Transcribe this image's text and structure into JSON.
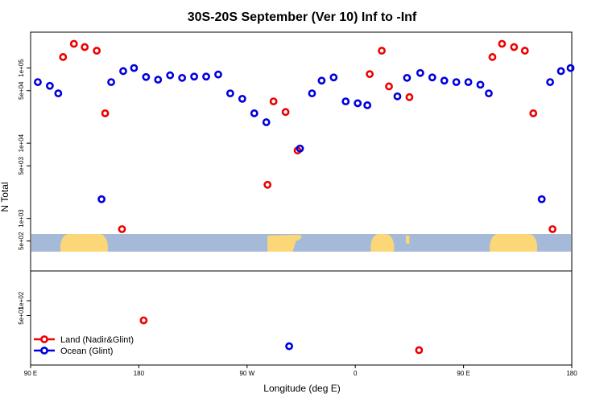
{
  "chart_data": {
    "type": "scatter",
    "title": "30S-20S September (Ver 10)   Inf to -Inf",
    "xlabel": "Longitude (deg E)",
    "ylabel": "N Total",
    "x_ticks": [
      {
        "value": 90,
        "label": "90 E"
      },
      {
        "value": 180,
        "label": "180"
      },
      {
        "value": 270,
        "label": "90 W"
      },
      {
        "value": 360,
        "label": "0"
      },
      {
        "value": 450,
        "label": "90 E"
      },
      {
        "value": 540,
        "label": "180"
      }
    ],
    "xlim": [
      90,
      540
    ],
    "upper_panel": {
      "scale": "log",
      "ylim": [
        200,
        300000
      ],
      "y_ticks": [
        {
          "value": 500,
          "label": "5e+02"
        },
        {
          "value": 1000,
          "label": "1e+03"
        },
        {
          "value": 5000,
          "label": "5e+03"
        },
        {
          "value": 10000,
          "label": "1e+04"
        },
        {
          "value": 50000,
          "label": "5e+04"
        },
        {
          "value": 100000,
          "label": "1e+05"
        }
      ]
    },
    "lower_panel": {
      "scale": "log",
      "ylim": [
        5,
        400
      ],
      "y_ticks": [
        {
          "value": 50,
          "label": "5e+01"
        },
        {
          "value": 100,
          "label": "1e+02"
        }
      ]
    },
    "colors": {
      "land": "#ee0000",
      "ocean": "#0000dd",
      "map_ocean": "#a5b9d9",
      "map_land": "#fcd777"
    },
    "series": [
      {
        "name": "Land (Nadir&Glint)",
        "color": "#ee0000",
        "points": [
          {
            "x": 117,
            "y": 140000,
            "panel": "upper"
          },
          {
            "x": 126,
            "y": 210000,
            "panel": "upper"
          },
          {
            "x": 135,
            "y": 190000,
            "panel": "upper"
          },
          {
            "x": 145,
            "y": 170000,
            "panel": "upper"
          },
          {
            "x": 152,
            "y": 25000,
            "panel": "upper"
          },
          {
            "x": 166,
            "y": 720,
            "panel": "upper"
          },
          {
            "x": 184,
            "y": 40,
            "panel": "lower"
          },
          {
            "x": 287,
            "y": 2800,
            "panel": "upper"
          },
          {
            "x": 292,
            "y": 36000,
            "panel": "upper"
          },
          {
            "x": 302,
            "y": 26000,
            "panel": "upper"
          },
          {
            "x": 312,
            "y": 8000,
            "panel": "upper"
          },
          {
            "x": 372,
            "y": 83000,
            "panel": "upper"
          },
          {
            "x": 382,
            "y": 170000,
            "panel": "upper"
          },
          {
            "x": 388,
            "y": 57000,
            "panel": "upper"
          },
          {
            "x": 405,
            "y": 41000,
            "panel": "upper"
          },
          {
            "x": 413,
            "y": 10,
            "panel": "lower"
          },
          {
            "x": 474,
            "y": 140000,
            "panel": "upper"
          },
          {
            "x": 482,
            "y": 210000,
            "panel": "upper"
          },
          {
            "x": 492,
            "y": 190000,
            "panel": "upper"
          },
          {
            "x": 501,
            "y": 170000,
            "panel": "upper"
          },
          {
            "x": 508,
            "y": 25000,
            "panel": "upper"
          },
          {
            "x": 524,
            "y": 720,
            "panel": "upper"
          }
        ]
      },
      {
        "name": "Ocean (Glint)",
        "color": "#0000dd",
        "points": [
          {
            "x": 96,
            "y": 65000,
            "panel": "upper"
          },
          {
            "x": 106,
            "y": 58000,
            "panel": "upper"
          },
          {
            "x": 113,
            "y": 46000,
            "panel": "upper"
          },
          {
            "x": 149,
            "y": 1800,
            "panel": "upper"
          },
          {
            "x": 157,
            "y": 65000,
            "panel": "upper"
          },
          {
            "x": 167,
            "y": 91000,
            "panel": "upper"
          },
          {
            "x": 176,
            "y": 100000,
            "panel": "upper"
          },
          {
            "x": 186,
            "y": 76000,
            "panel": "upper"
          },
          {
            "x": 196,
            "y": 70000,
            "panel": "upper"
          },
          {
            "x": 206,
            "y": 80000,
            "panel": "upper"
          },
          {
            "x": 216,
            "y": 74000,
            "panel": "upper"
          },
          {
            "x": 226,
            "y": 77000,
            "panel": "upper"
          },
          {
            "x": 236,
            "y": 77000,
            "panel": "upper"
          },
          {
            "x": 246,
            "y": 82000,
            "panel": "upper"
          },
          {
            "x": 256,
            "y": 46000,
            "panel": "upper"
          },
          {
            "x": 266,
            "y": 39000,
            "panel": "upper"
          },
          {
            "x": 276,
            "y": 25000,
            "panel": "upper"
          },
          {
            "x": 286,
            "y": 19000,
            "panel": "upper"
          },
          {
            "x": 314,
            "y": 8500,
            "panel": "upper"
          },
          {
            "x": 324,
            "y": 46000,
            "panel": "upper"
          },
          {
            "x": 332,
            "y": 68000,
            "panel": "upper"
          },
          {
            "x": 342,
            "y": 75000,
            "panel": "upper"
          },
          {
            "x": 352,
            "y": 36000,
            "panel": "upper"
          },
          {
            "x": 362,
            "y": 34000,
            "panel": "upper"
          },
          {
            "x": 370,
            "y": 32000,
            "panel": "upper"
          },
          {
            "x": 395,
            "y": 42000,
            "panel": "upper"
          },
          {
            "x": 403,
            "y": 74000,
            "panel": "upper"
          },
          {
            "x": 414,
            "y": 86000,
            "panel": "upper"
          },
          {
            "x": 424,
            "y": 75000,
            "panel": "upper"
          },
          {
            "x": 434,
            "y": 68000,
            "panel": "upper"
          },
          {
            "x": 444,
            "y": 65000,
            "panel": "upper"
          },
          {
            "x": 454,
            "y": 65000,
            "panel": "upper"
          },
          {
            "x": 464,
            "y": 60000,
            "panel": "upper"
          },
          {
            "x": 471,
            "y": 46000,
            "panel": "upper"
          },
          {
            "x": 305,
            "y": 12,
            "panel": "lower"
          },
          {
            "x": 515,
            "y": 1800,
            "panel": "upper"
          },
          {
            "x": 522,
            "y": 65000,
            "panel": "upper"
          },
          {
            "x": 531,
            "y": 91000,
            "panel": "upper"
          },
          {
            "x": 539,
            "y": 100000,
            "panel": "upper"
          }
        ]
      }
    ],
    "land_blobs": [
      {
        "x0": 115,
        "x1": 154,
        "shape": "round"
      },
      {
        "x0": 287,
        "x1": 316,
        "shape": "bulge_right"
      },
      {
        "x0": 373,
        "x1": 392,
        "shape": "round"
      },
      {
        "x0": 402,
        "x1": 405,
        "shape": "flat"
      },
      {
        "x0": 472,
        "x1": 511,
        "shape": "round"
      }
    ],
    "legend": {
      "position": "bottom-left",
      "entries": [
        "Land (Nadir&Glint)",
        "Ocean (Glint)"
      ]
    }
  }
}
